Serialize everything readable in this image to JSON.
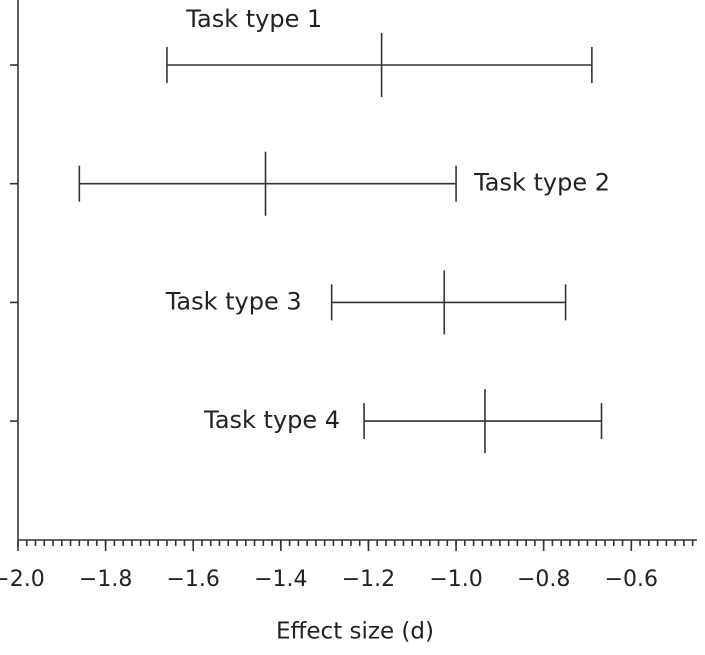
{
  "chart_data": {
    "type": "interval",
    "xlabel": "Effect size (d)",
    "categories": [
      "Task type 1",
      "Task type 2",
      "Task type 3",
      "Task type 4"
    ],
    "values": [
      -1.17,
      -1.435,
      -1.027,
      -0.934
    ],
    "lower": [
      -1.66,
      -1.86,
      -1.284,
      -1.21
    ],
    "upper": [
      -0.69,
      -1.0,
      -0.75,
      -0.668
    ],
    "xlim": [
      -2.0,
      -0.45
    ],
    "xticks": [
      {
        "value": -2.0,
        "label": "−2.0"
      },
      {
        "value": -1.8,
        "label": "−1.8"
      },
      {
        "value": -1.6,
        "label": "−1.6"
      },
      {
        "value": -1.4,
        "label": "−1.4"
      },
      {
        "value": -1.2,
        "label": "−1.2"
      },
      {
        "value": -1.0,
        "label": "−1.0"
      },
      {
        "value": -0.8,
        "label": "−0.8"
      },
      {
        "value": -0.6,
        "label": "−0.6"
      }
    ],
    "color": "#333333"
  }
}
